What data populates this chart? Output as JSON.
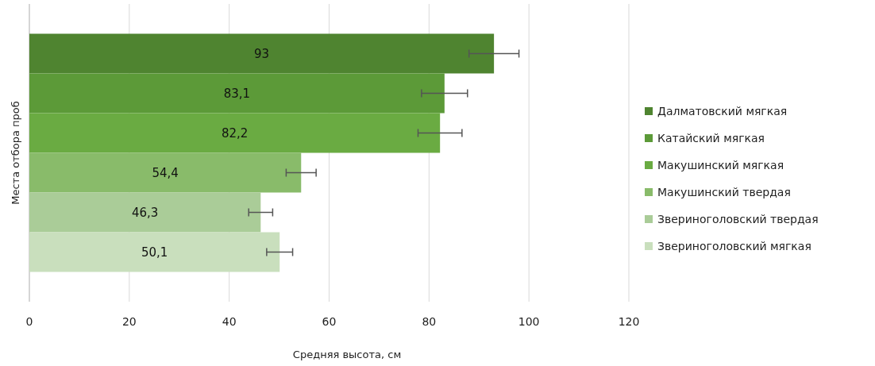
{
  "chart_data": {
    "type": "bar",
    "orientation": "horizontal",
    "categories": [
      null
    ],
    "xlabel": "Средняя высота, см",
    "ylabel": "Места отбора проб",
    "xlim": [
      0,
      120
    ],
    "xticks": [
      0,
      20,
      40,
      60,
      80,
      100,
      120
    ],
    "grid": "x",
    "legend": "right",
    "series": [
      {
        "name": "Далматовский мягкая",
        "color": "#4f8430",
        "values": [
          93
        ],
        "errors": [
          5
        ],
        "value_labels": [
          "93"
        ]
      },
      {
        "name": "Катайский мягкая",
        "color": "#5c9a38",
        "values": [
          83.1
        ],
        "errors": [
          4.6
        ],
        "value_labels": [
          "83,1"
        ]
      },
      {
        "name": "Макушинский мягкая",
        "color": "#6aab42",
        "values": [
          82.2
        ],
        "errors": [
          4.4
        ],
        "value_labels": [
          "82,2"
        ]
      },
      {
        "name": "Макушинский твердая",
        "color": "#89bb6a",
        "values": [
          54.4
        ],
        "errors": [
          3
        ],
        "value_labels": [
          "54,4"
        ]
      },
      {
        "name": "Звериноголовский твердая",
        "color": "#aacc98",
        "values": [
          46.3
        ],
        "errors": [
          2.4
        ],
        "value_labels": [
          "46,3"
        ]
      },
      {
        "name": "Звериноголовский мягкая",
        "color": "#c9dfbd",
        "values": [
          50.1
        ],
        "errors": [
          2.6
        ],
        "value_labels": [
          "50,1"
        ]
      }
    ]
  }
}
